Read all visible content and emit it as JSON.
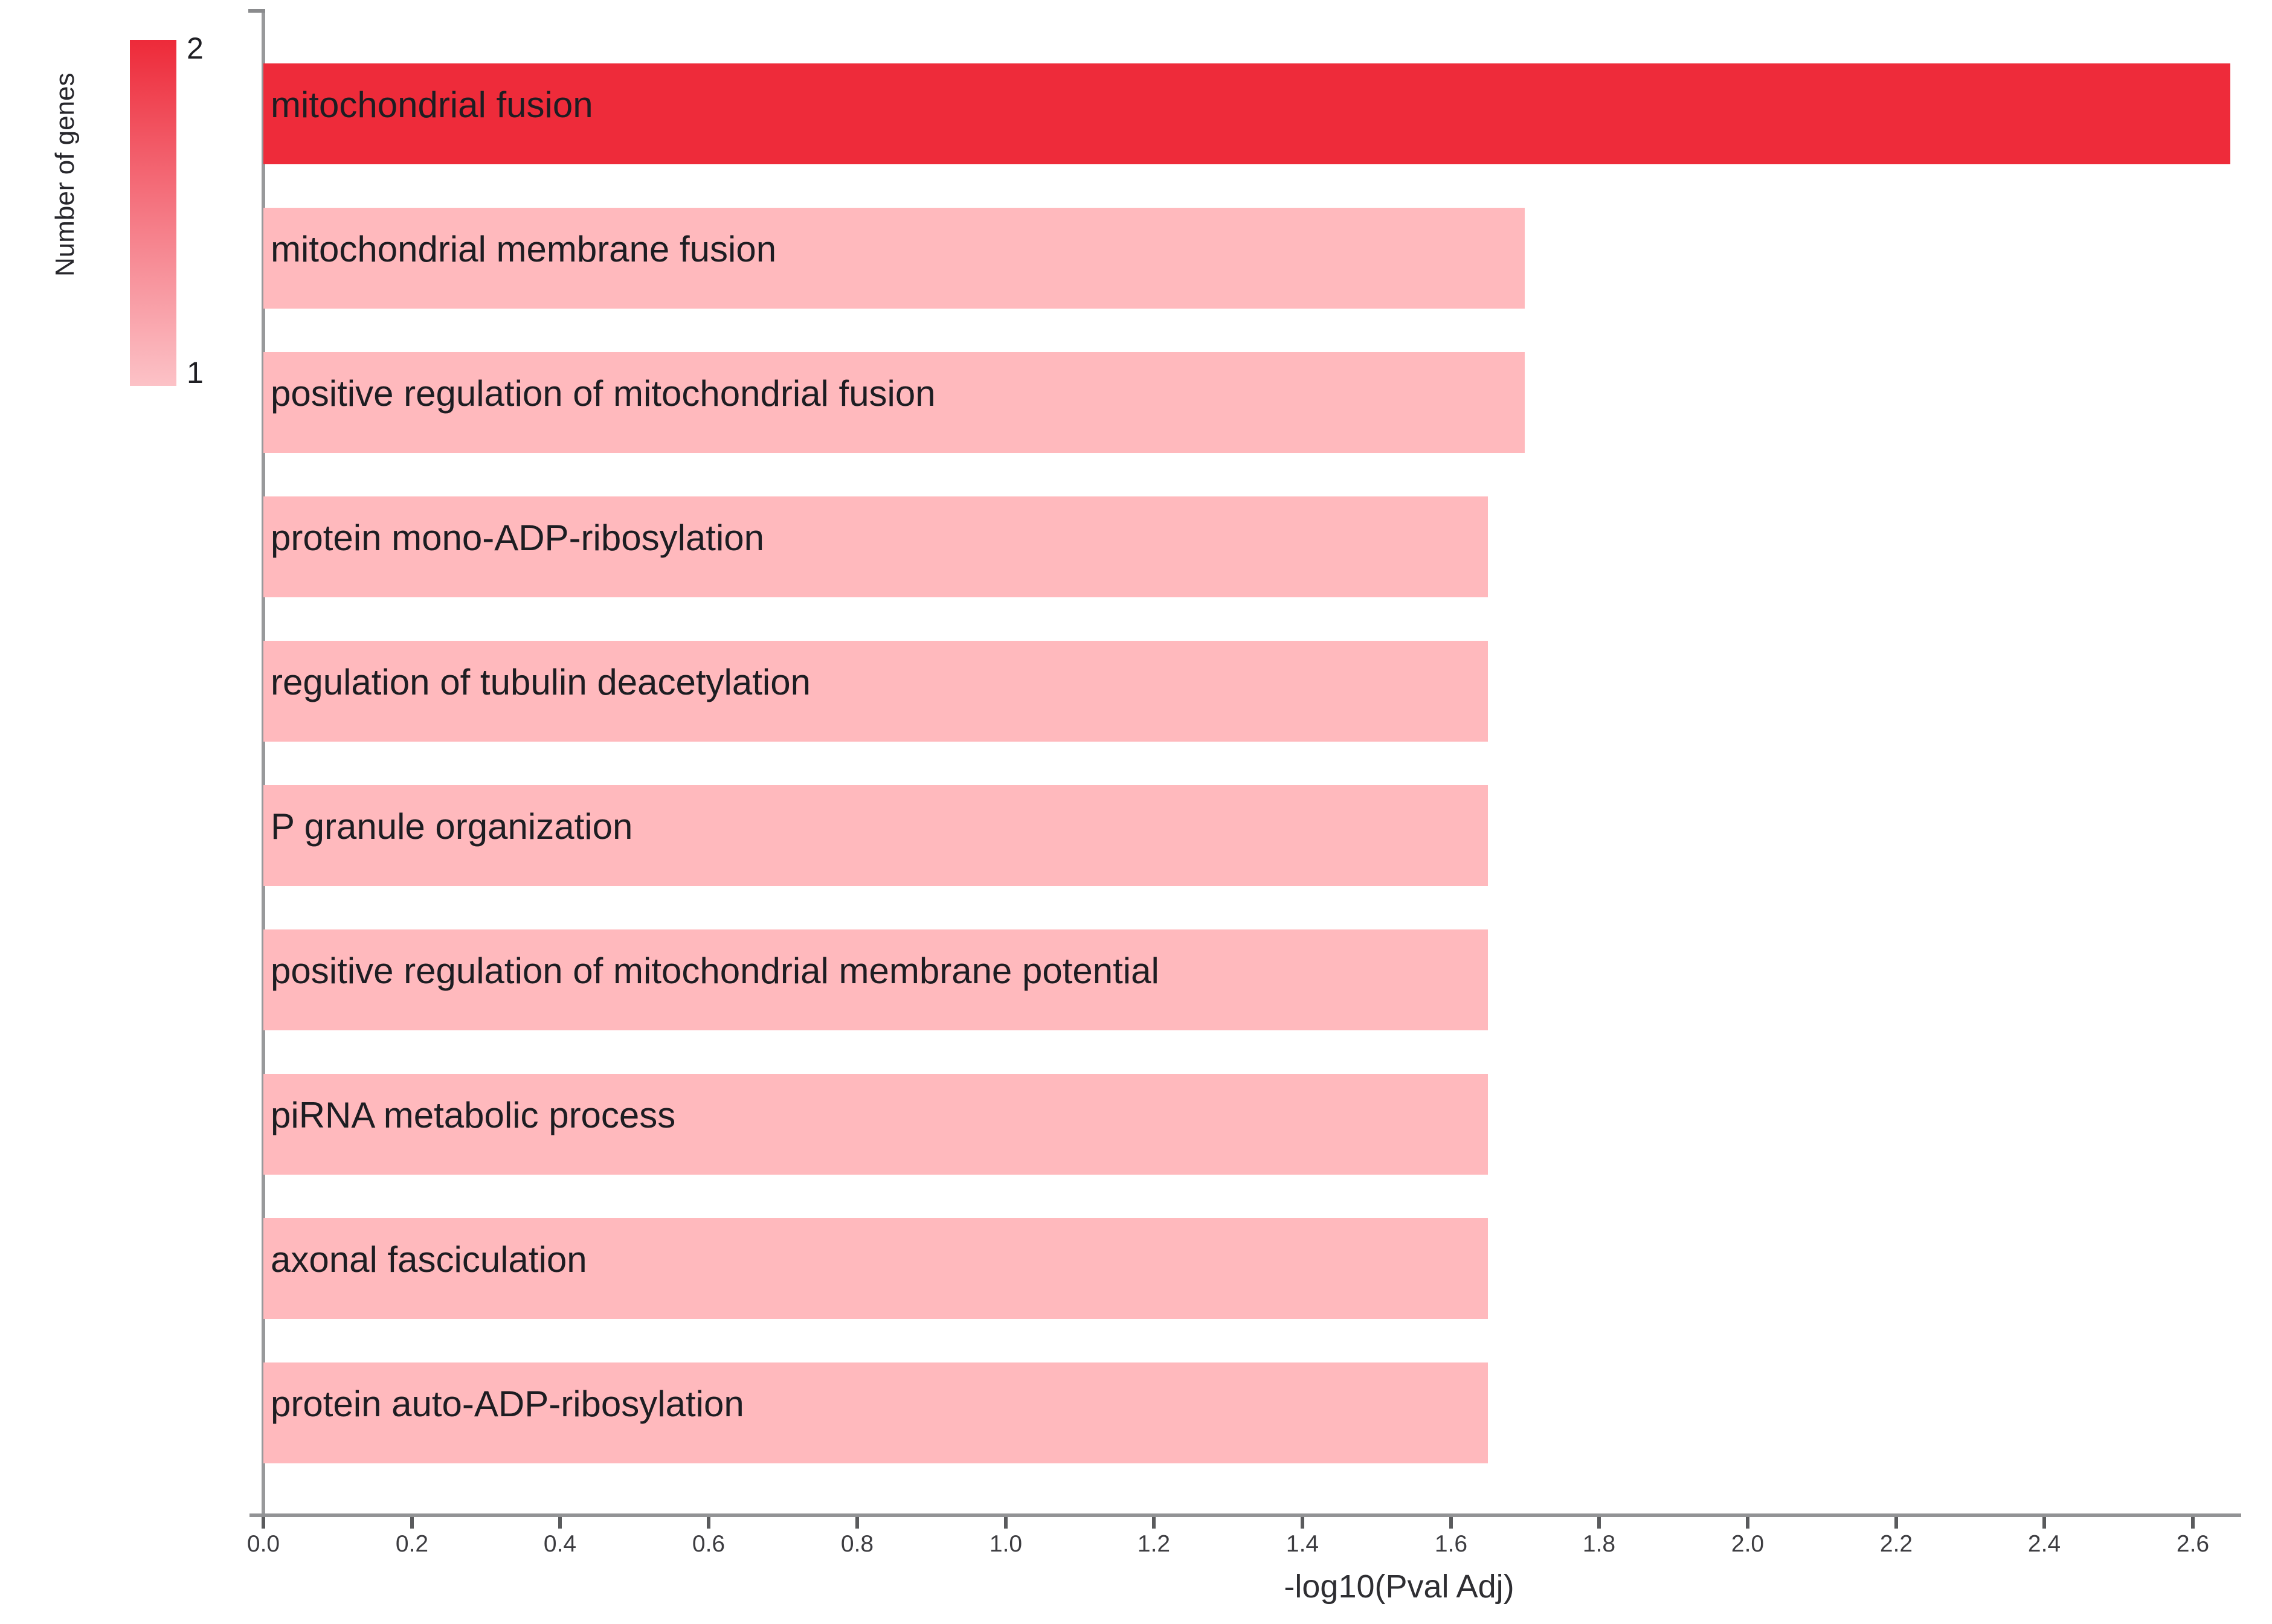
{
  "chart_data": {
    "type": "bar",
    "orientation": "horizontal",
    "title": "",
    "xlabel": "-log10(Pval Adj)",
    "ylabel": "",
    "xlim": [
      0.0,
      2.66
    ],
    "grid": false,
    "x_ticks": [
      "0.0",
      "0.2",
      "0.4",
      "0.6",
      "0.8",
      "1.0",
      "1.2",
      "1.4",
      "1.6",
      "1.8",
      "2.0",
      "2.2",
      "2.4",
      "2.6"
    ],
    "categories": [
      "mitochondrial fusion",
      "mitochondrial membrane fusion",
      "positive regulation of mitochondrial fusion",
      "protein mono-ADP-ribosylation",
      "regulation of tubulin deacetylation",
      "P granule organization",
      "positive regulation of mitochondrial membrane potential",
      "piRNA metabolic process",
      "axonal fasciculation",
      "protein auto-ADP-ribosylation"
    ],
    "values": [
      2.65,
      1.7,
      1.7,
      1.65,
      1.65,
      1.65,
      1.65,
      1.65,
      1.65,
      1.65
    ],
    "genes_per_term": [
      2,
      1,
      1,
      1,
      1,
      1,
      1,
      1,
      1,
      1
    ],
    "color_map": {
      "2": "#EE2B3A",
      "1": "#FFB9BD"
    },
    "legend": {
      "title": "Number of genes",
      "position": "left-top",
      "max_label": "2",
      "min_label": "1",
      "max_color": "#ED2A39",
      "min_color": "#FCC2C7"
    }
  }
}
